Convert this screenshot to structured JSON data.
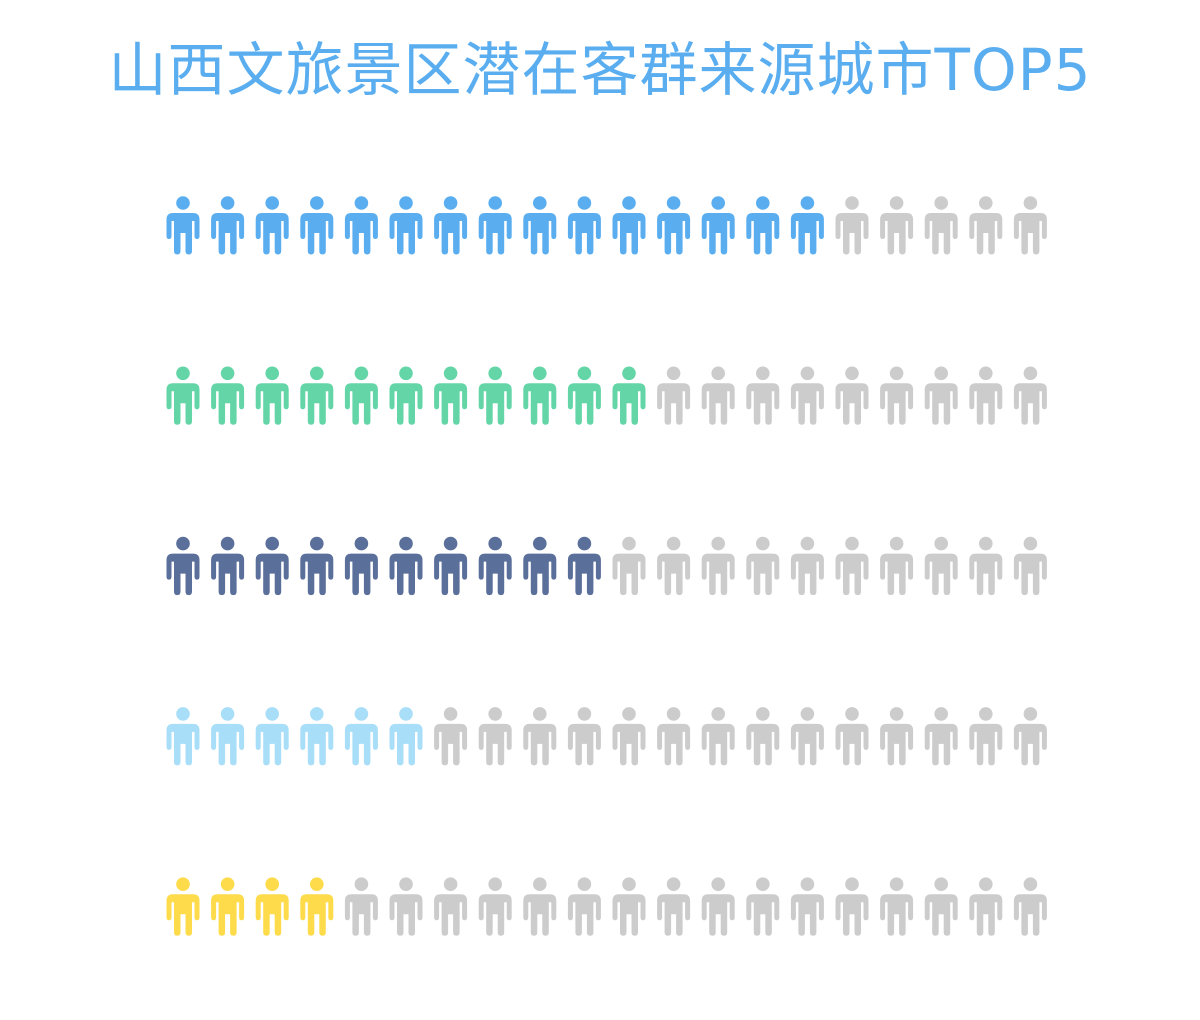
{
  "title": "山西文旅景区潜在客群来源城市TOP5",
  "colors": {
    "title": "#5aaef0",
    "empty": "#cccccc",
    "background": "#ffffff"
  },
  "chart_data": {
    "type": "pictorial-bar",
    "title": "山西文旅景区潜在客群来源城市TOP5",
    "icon": "person-icon",
    "max_icons": 20,
    "xlabel": "",
    "ylabel": "",
    "grid": false,
    "legend": "none",
    "series": [
      {
        "value": 15,
        "color": "#5aaef0"
      },
      {
        "value": 11.5,
        "color": "#63d5a7"
      },
      {
        "value": 10,
        "color": "#5b6f9b"
      },
      {
        "value": 6.3,
        "color": "#a8def8"
      },
      {
        "value": 4.8,
        "color": "#fedb4b"
      }
    ]
  }
}
